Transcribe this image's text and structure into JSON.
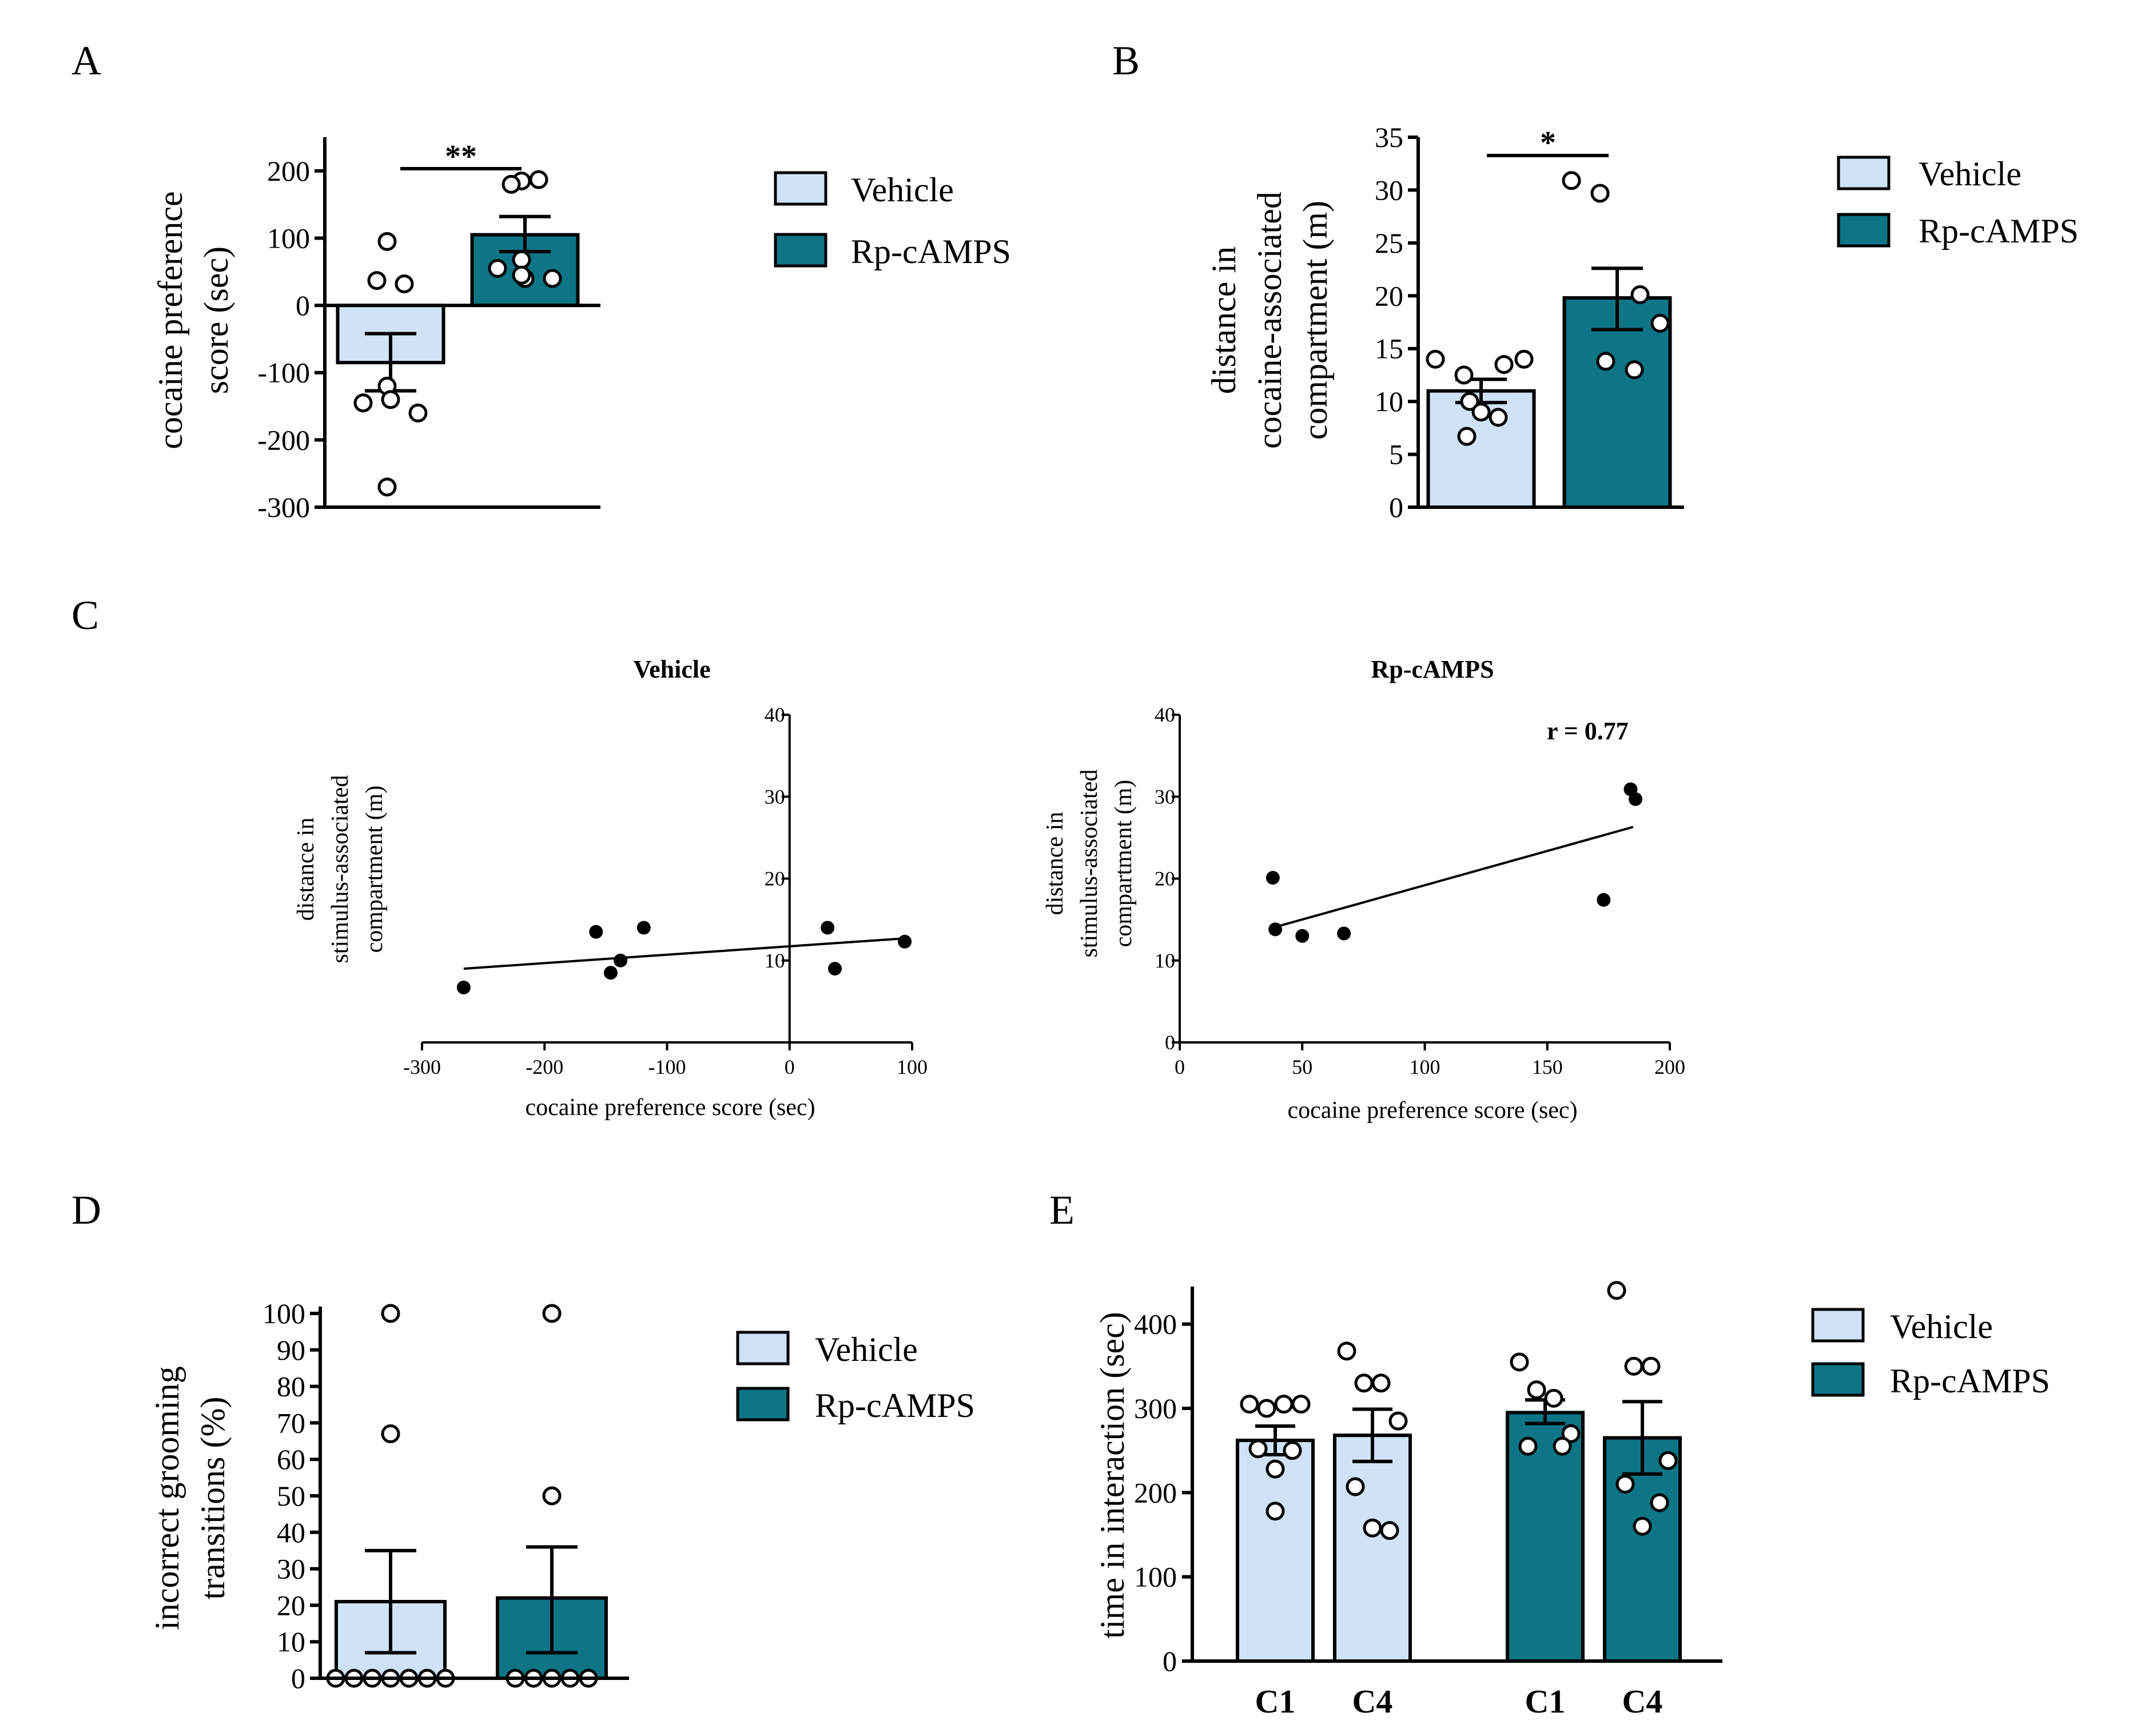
{
  "colors": {
    "vehicle": "#cfe2f8",
    "rp": "#0d7585",
    "ink": "#000000"
  },
  "legend": {
    "vehicle": "Vehicle",
    "rp": "Rp-cAMPS"
  },
  "chart_data": [
    {
      "panel": "A",
      "type": "bar",
      "ylabel_line1": "cocaine preference",
      "ylabel_line2": "score (sec)",
      "ylim": [
        -300,
        250
      ],
      "yticks": [
        200,
        100,
        0,
        -100,
        -200,
        -300
      ],
      "series": [
        {
          "name": "Vehicle",
          "mean": -85,
          "sem_low": -127,
          "sem_high": -42,
          "points": [
            95,
            37,
            32,
            -120,
            -145,
            -140,
            -160,
            -270
          ]
        },
        {
          "name": "Rp-cAMPS",
          "mean": 105,
          "sem_low": 80,
          "sem_high": 132,
          "points": [
            185,
            180,
            187,
            68,
            55,
            40,
            40,
            45
          ]
        }
      ],
      "significance": "**"
    },
    {
      "panel": "B",
      "type": "bar",
      "ylabel_line1": "distance in",
      "ylabel_line2": "cocaine-associated",
      "ylabel_line3": "compartment (m)",
      "ylim": [
        0,
        35
      ],
      "yticks": [
        35,
        30,
        25,
        20,
        15,
        10,
        5,
        0
      ],
      "series": [
        {
          "name": "Vehicle",
          "mean": 11,
          "sem_low": 9.9,
          "sem_high": 12.1,
          "points": [
            14,
            12.5,
            13.5,
            14,
            10,
            8.5,
            9,
            6.7
          ]
        },
        {
          "name": "Rp-cAMPS",
          "mean": 19.8,
          "sem_low": 16.8,
          "sem_high": 22.6,
          "points": [
            30.9,
            29.7,
            20.1,
            17.4,
            13.8,
            13
          ]
        }
      ],
      "significance": "*"
    },
    {
      "panel": "C",
      "type": "scatter",
      "title": "Vehicle",
      "xlabel": "cocaine preference score (sec)",
      "ylabel_line1": "distance in",
      "ylabel_line2": "stimulus-associated",
      "ylabel_line3": "compartment (m)",
      "xlim": [
        -300,
        100
      ],
      "ylim": [
        0,
        40
      ],
      "xticks": [
        -300,
        -200,
        -100,
        0,
        100
      ],
      "yticks": [
        40,
        30,
        20,
        10
      ],
      "x": [
        -266,
        -158,
        -146,
        -138,
        -119,
        31,
        37,
        94
      ],
      "y": [
        6.7,
        13.5,
        8.5,
        10,
        14,
        14,
        9,
        12.3
      ],
      "fit": {
        "x0": -266,
        "y0": 9,
        "x1": 94,
        "y1": 12.7
      }
    },
    {
      "panel": "C",
      "type": "scatter",
      "title": "Rp-cAMPS",
      "xlabel": "cocaine preference score (sec)",
      "ylabel_line1": "distance in",
      "ylabel_line2": "stimulus-associated",
      "ylabel_line3": "compartment (m)",
      "xlim": [
        0,
        200
      ],
      "ylim": [
        0,
        40
      ],
      "xticks": [
        0,
        50,
        100,
        150,
        200
      ],
      "yticks": [
        40,
        30,
        20,
        10,
        0
      ],
      "x": [
        38,
        39,
        50,
        67,
        173,
        184,
        186
      ],
      "y": [
        20.1,
        13.8,
        13,
        13.3,
        17.4,
        30.9,
        29.7
      ],
      "fit": {
        "x0": 38,
        "y0": 14,
        "x1": 185,
        "y1": 26.3
      },
      "annotation": "r = 0.77"
    },
    {
      "panel": "D",
      "type": "bar",
      "ylabel_line1": "incorrect grooming",
      "ylabel_line2": "transitions (%)",
      "ylim": [
        0,
        100
      ],
      "yticks": [
        100,
        90,
        80,
        70,
        60,
        50,
        40,
        30,
        20,
        10,
        0
      ],
      "series": [
        {
          "name": "Vehicle",
          "mean": 21,
          "sem_low": 7,
          "sem_high": 35,
          "points": [
            100,
            67,
            0,
            0,
            0,
            0,
            0,
            0,
            0
          ]
        },
        {
          "name": "Rp-cAMPS",
          "mean": 22,
          "sem_low": 7,
          "sem_high": 36,
          "points": [
            100,
            50,
            0,
            0,
            0,
            0,
            0
          ]
        }
      ]
    },
    {
      "panel": "E",
      "type": "bar",
      "ylabel": "time in interaction (sec)",
      "ylim": [
        0,
        450
      ],
      "yticks": [
        400,
        300,
        200,
        100,
        0
      ],
      "categories": [
        "C1",
        "C4",
        "C1",
        "C4"
      ],
      "series": [
        {
          "name": "Vehicle",
          "category": "C1",
          "mean": 262,
          "sem_low": 245,
          "sem_high": 279,
          "points": [
            305,
            300,
            305,
            305,
            252,
            250,
            228,
            178
          ]
        },
        {
          "name": "Vehicle",
          "category": "C4",
          "mean": 268,
          "sem_low": 237,
          "sem_high": 299,
          "points": [
            368,
            330,
            330,
            285,
            207,
            155,
            158
          ]
        },
        {
          "name": "Rp-cAMPS",
          "category": "C1",
          "mean": 295,
          "sem_low": 282,
          "sem_high": 310,
          "points": [
            355,
            322,
            312,
            270,
            255,
            255
          ]
        },
        {
          "name": "Rp-cAMPS",
          "category": "C4",
          "mean": 265,
          "sem_low": 222,
          "sem_high": 308,
          "points": [
            440,
            350,
            350,
            238,
            210,
            188,
            160
          ]
        }
      ]
    }
  ]
}
